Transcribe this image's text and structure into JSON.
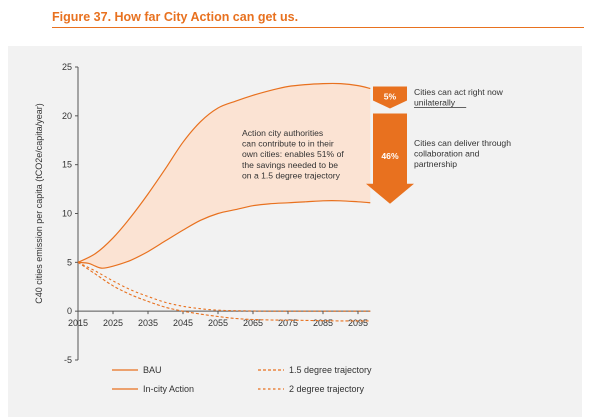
{
  "figure_title": "Figure 37. How far City Action can get us.",
  "colors": {
    "accent": "#e8711f",
    "band_fill": "#fbe3d3",
    "panel_bg": "#f2f2f2",
    "text": "#333333"
  },
  "chart_data": {
    "type": "line",
    "ylabel": "C40 cities emission per capita (tCO2e/capita/year)",
    "ylim": [
      -5,
      25
    ],
    "yticks": [
      "25",
      "20",
      "15",
      "10",
      "5",
      "0",
      "-5"
    ],
    "xlim": [
      2015,
      2100
    ],
    "xticks": [
      "2015",
      "2025",
      "2035",
      "2045",
      "2055",
      "2065",
      "2075",
      "2085",
      "2095"
    ],
    "legend_position": "bottom",
    "series": [
      {
        "name": "BAU",
        "style": "solid",
        "x": [
          2015,
          2020,
          2025,
          2030,
          2035,
          2040,
          2045,
          2050,
          2055,
          2060,
          2065,
          2070,
          2075,
          2080,
          2085,
          2090,
          2095,
          2100
        ],
        "values": [
          5.0,
          5.9,
          7.5,
          9.6,
          12.0,
          14.6,
          17.3,
          19.4,
          20.8,
          21.5,
          22.1,
          22.6,
          23.0,
          23.2,
          23.3,
          23.3,
          23.1,
          22.8
        ]
      },
      {
        "name": "In-city Action",
        "style": "solid",
        "x": [
          2015,
          2018,
          2020,
          2022,
          2025,
          2030,
          2035,
          2040,
          2045,
          2050,
          2055,
          2060,
          2065,
          2070,
          2075,
          2080,
          2085,
          2090,
          2095,
          2100
        ],
        "values": [
          5.0,
          4.9,
          4.6,
          4.4,
          4.6,
          5.2,
          6.1,
          7.2,
          8.3,
          9.3,
          10.0,
          10.4,
          10.8,
          11.0,
          11.1,
          11.2,
          11.3,
          11.3,
          11.2,
          11.1
        ]
      },
      {
        "name": "1.5 degree trajectory",
        "style": "dashed",
        "x": [
          2015,
          2020,
          2025,
          2030,
          2035,
          2040,
          2045,
          2050,
          2055,
          2060,
          2065,
          2070,
          2080,
          2090,
          2100
        ],
        "values": [
          5.0,
          3.8,
          2.6,
          1.7,
          1.0,
          0.4,
          0.0,
          -0.3,
          -0.55,
          -0.75,
          -0.85,
          -0.9,
          -0.95,
          -1.0,
          -1.0
        ]
      },
      {
        "name": "2 degree trajectory",
        "style": "dashed",
        "x": [
          2015,
          2020,
          2025,
          2030,
          2035,
          2040,
          2045,
          2050,
          2055,
          2060,
          2070,
          2080,
          2090,
          2100
        ],
        "values": [
          5.0,
          4.1,
          3.1,
          2.2,
          1.5,
          0.9,
          0.5,
          0.25,
          0.1,
          0.05,
          0.0,
          0.0,
          0.0,
          0.0
        ]
      }
    ],
    "annotations": {
      "center_text": [
        "Action city authorities",
        "can contribute to in their",
        "own cities: enables 51% of",
        "the savings needed to be",
        "on a 1.5 degree trajectory"
      ],
      "badge_top": "5%",
      "badge_top_text": [
        "Cities can act right now",
        "unilaterally"
      ],
      "badge_bottom": "46%",
      "badge_bottom_text": [
        "Cities can deliver through",
        "collaboration and",
        "partnership"
      ]
    }
  }
}
